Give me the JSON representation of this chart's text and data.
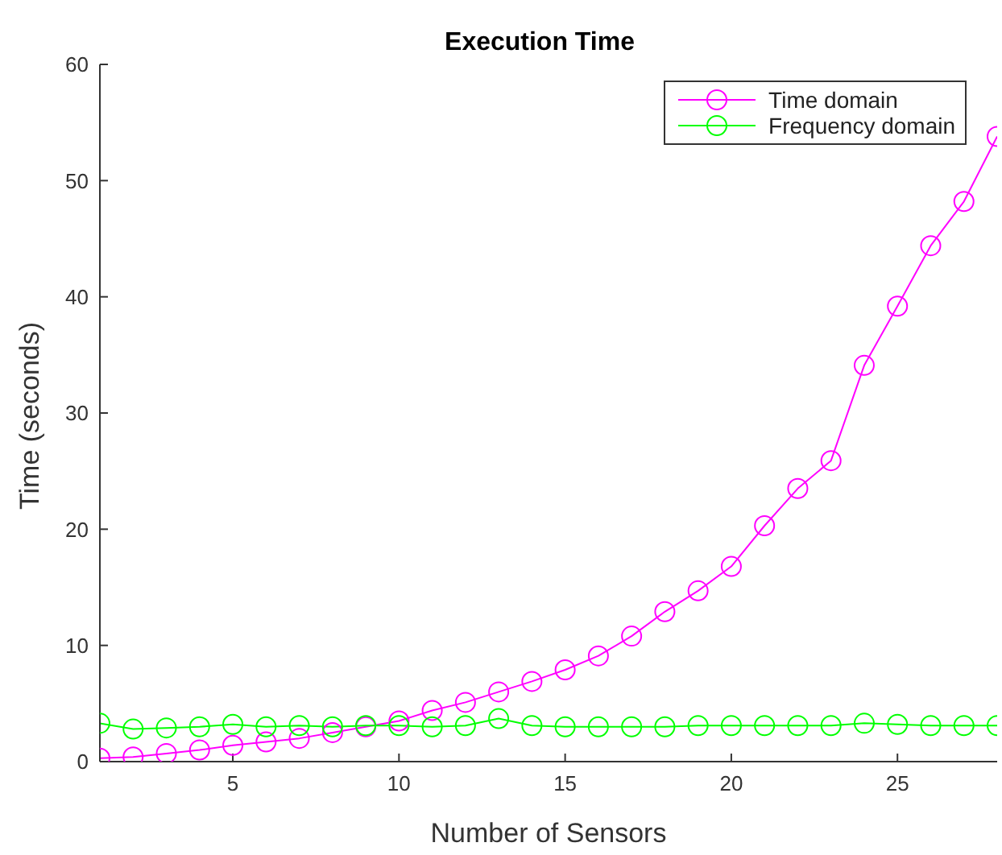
{
  "chart_data": {
    "type": "line",
    "title": "Execution Time",
    "xlabel": "Number of Sensors",
    "ylabel": "Time (seconds)",
    "x": [
      1,
      2,
      3,
      4,
      5,
      6,
      7,
      8,
      9,
      10,
      11,
      12,
      13,
      14,
      15,
      16,
      17,
      18,
      19,
      20,
      21,
      22,
      23,
      24,
      25,
      26,
      27,
      28
    ],
    "series": [
      {
        "name": "Time domain",
        "color": "#ff00ff",
        "values": [
          0.3,
          0.4,
          0.7,
          1.0,
          1.4,
          1.7,
          2.0,
          2.5,
          3.0,
          3.5,
          4.4,
          5.1,
          6.0,
          6.9,
          7.9,
          9.1,
          10.8,
          12.9,
          14.7,
          16.8,
          20.3,
          23.5,
          25.9,
          34.1,
          39.2,
          44.4,
          48.2,
          53.8
        ]
      },
      {
        "name": "Frequency domain",
        "color": "#00ff00",
        "values": [
          3.3,
          2.8,
          2.9,
          3.0,
          3.2,
          3.0,
          3.1,
          3.0,
          3.1,
          3.1,
          3.0,
          3.1,
          3.7,
          3.1,
          3.0,
          3.0,
          3.0,
          3.0,
          3.1,
          3.1,
          3.1,
          3.1,
          3.1,
          3.3,
          3.2,
          3.1,
          3.1,
          3.1
        ]
      }
    ],
    "xlim": [
      1,
      28
    ],
    "xticks": [
      5,
      10,
      15,
      20,
      25
    ],
    "ylim": [
      0,
      60
    ],
    "yticks": [
      0,
      10,
      20,
      30,
      40,
      50,
      60
    ],
    "grid": false,
    "legend": "top right",
    "marker": "circle",
    "line_style": "solid"
  }
}
